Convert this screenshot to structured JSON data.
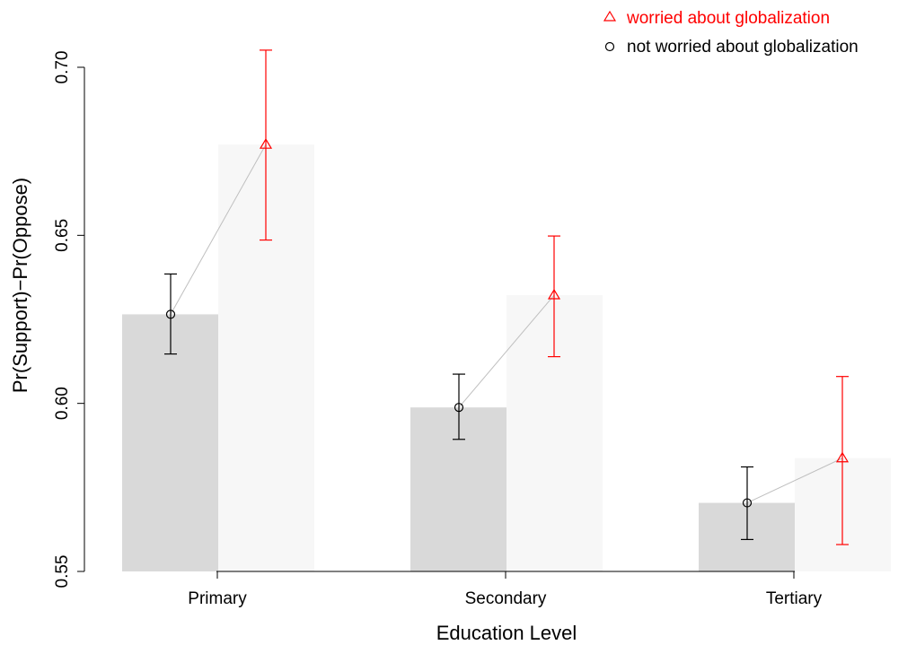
{
  "chart_data": {
    "type": "bar",
    "xlabel": "Education Level",
    "ylabel": "Pr(Support)−Pr(Oppose)",
    "ylim": [
      0.55,
      0.7
    ],
    "yticks": [
      0.55,
      0.6,
      0.65,
      0.7
    ],
    "ytick_labels": [
      "0.55",
      "0.60",
      "0.65",
      "0.70"
    ],
    "categories": [
      "Primary",
      "Secondary",
      "Tertiary"
    ],
    "grid": false,
    "legend_position": "top-right",
    "series": [
      {
        "name": "not worried about globalization",
        "marker": "circle",
        "marker_color": "#000000",
        "bar_color": "#d9d9d9",
        "values": [
          0.6265,
          0.5988,
          0.5704
        ],
        "ci_low": [
          0.6147,
          0.5893,
          0.5595
        ],
        "ci_high": [
          0.6385,
          0.6087,
          0.5811
        ]
      },
      {
        "name": "worried about globalization",
        "marker": "triangle",
        "marker_color": "#ff0000",
        "bar_color": "#f7f7f7",
        "values": [
          0.677,
          0.6322,
          0.5837
        ],
        "ci_low": [
          0.6486,
          0.6139,
          0.558
        ],
        "ci_high": [
          0.7051,
          0.6498,
          0.608
        ]
      }
    ],
    "connector_color": "#bfbfbf"
  }
}
